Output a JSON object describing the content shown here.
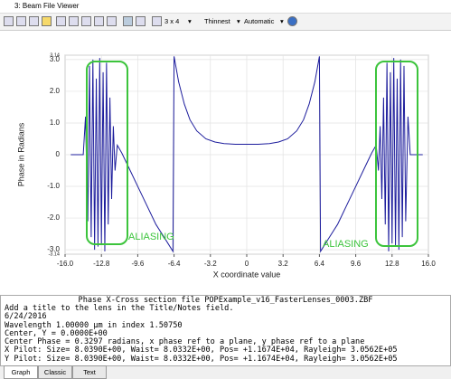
{
  "window": {
    "title": "3: Beam File Viewer"
  },
  "toolbar": {
    "layout": "3 x 4",
    "line_style": "Thinnest",
    "scale": "Automatic"
  },
  "chart_data": {
    "type": "line",
    "xlabel": "X coordinate value",
    "ylabel": "Phase in Radians",
    "x": [
      -15.5,
      -14.4,
      -14.2,
      -14.0,
      -13.85,
      -13.7,
      -13.55,
      -13.4,
      -13.25,
      -13.1,
      -12.95,
      -12.8,
      -12.65,
      -12.5,
      -12.35,
      -12.2,
      -12.05,
      -11.9,
      -11.75,
      -11.6,
      -11.4,
      -11.0,
      -10.4,
      -9.6,
      -8.8,
      -8.0,
      -7.2,
      -6.5,
      -6.4,
      -6.0,
      -5.5,
      -5.0,
      -4.4,
      -3.6,
      -2.8,
      -2.0,
      -1.0,
      0,
      1.0,
      2.0,
      2.8,
      3.6,
      4.4,
      5.0,
      5.5,
      6.0,
      6.4,
      6.5,
      7.2,
      8.0,
      8.8,
      9.6,
      10.4,
      11.0,
      11.4,
      11.6,
      11.75,
      11.9,
      12.05,
      12.2,
      12.35,
      12.5,
      12.65,
      12.8,
      12.95,
      13.1,
      13.25,
      13.4,
      13.55,
      13.7,
      13.85,
      14.0,
      14.2,
      14.4,
      15.5
    ],
    "series": [
      {
        "color": "#1c1c9c",
        "values": [
          0,
          0,
          1.2,
          -2.1,
          2.8,
          -2.6,
          3.0,
          -3.0,
          2.4,
          -2.9,
          3.05,
          -2.8,
          2.6,
          -3.05,
          2.9,
          -2.2,
          1.8,
          -1.4,
          0.9,
          -0.5,
          0.3,
          0.05,
          -0.4,
          -1.0,
          -1.6,
          -2.2,
          -2.65,
          -3.05,
          3.1,
          2.3,
          1.6,
          1.1,
          0.75,
          0.5,
          0.4,
          0.35,
          0.33,
          0.33,
          0.33,
          0.35,
          0.4,
          0.5,
          0.75,
          1.1,
          1.6,
          2.3,
          3.1,
          -3.05,
          -2.65,
          -2.2,
          -1.6,
          -1.0,
          -0.4,
          0.05,
          0.3,
          -0.5,
          0.9,
          -1.4,
          1.8,
          -2.2,
          2.9,
          -3.05,
          2.6,
          -2.8,
          3.05,
          -2.9,
          2.4,
          -3.0,
          3.0,
          -2.6,
          2.8,
          -2.1,
          1.2,
          0,
          0
        ]
      }
    ],
    "annotations": [
      "ALIASING",
      "ALIASING"
    ],
    "xlim": [
      -16,
      16
    ],
    "ylim": [
      -3.14,
      3.14
    ],
    "xticks": [
      {
        "value": -16,
        "label": "-16.0"
      },
      {
        "value": -12.8,
        "label": "-12.8"
      },
      {
        "value": -9.6,
        "label": "-9.6"
      },
      {
        "value": -6.4,
        "label": "-6.4"
      },
      {
        "value": -3.2,
        "label": "-3.2"
      },
      0,
      {
        "value": 3.2,
        "label": "3.2"
      },
      {
        "value": 6.4,
        "label": "6.4"
      },
      {
        "value": 9.6,
        "label": "9.6"
      },
      {
        "value": 12.8,
        "label": "12.8"
      },
      {
        "value": 16,
        "label": "16.0"
      }
    ],
    "yticks": [
      3.14,
      {
        "value": 3,
        "label": "3.0"
      },
      {
        "value": 2,
        "label": "2.0"
      },
      {
        "value": 1,
        "label": "1.0"
      },
      0,
      {
        "value": -1,
        "label": "-1.0"
      },
      {
        "value": -2,
        "label": "-2.0"
      },
      {
        "value": -3,
        "label": "-3.0"
      },
      -3.14
    ],
    "grid": true
  },
  "text_panel": {
    "title": "Phase X-Cross section file POPExample_v16_FasterLenses_0003.ZBF",
    "lines": [
      "Add a title to the lens in the Title/Notes field.",
      "6/24/2016",
      "Wavelength 1.00000 µm in index 1.50750",
      "Center, Y = 0.0000E+00",
      "Center Phase = 0.3297 radians, x phase ref to a plane, y phase ref to a plane",
      "X Pilot: Size= 8.0390E+00, Waist= 8.0332E+00, Pos= +1.1674E+04, Rayleigh= 3.0562E+05",
      "Y Pilot: Size= 8.0390E+00, Waist= 8.0332E+00, Pos= +1.1674E+04, Rayleigh= 3.0562E+05"
    ]
  },
  "tabs": [
    "Graph",
    "Classic",
    "Text"
  ]
}
